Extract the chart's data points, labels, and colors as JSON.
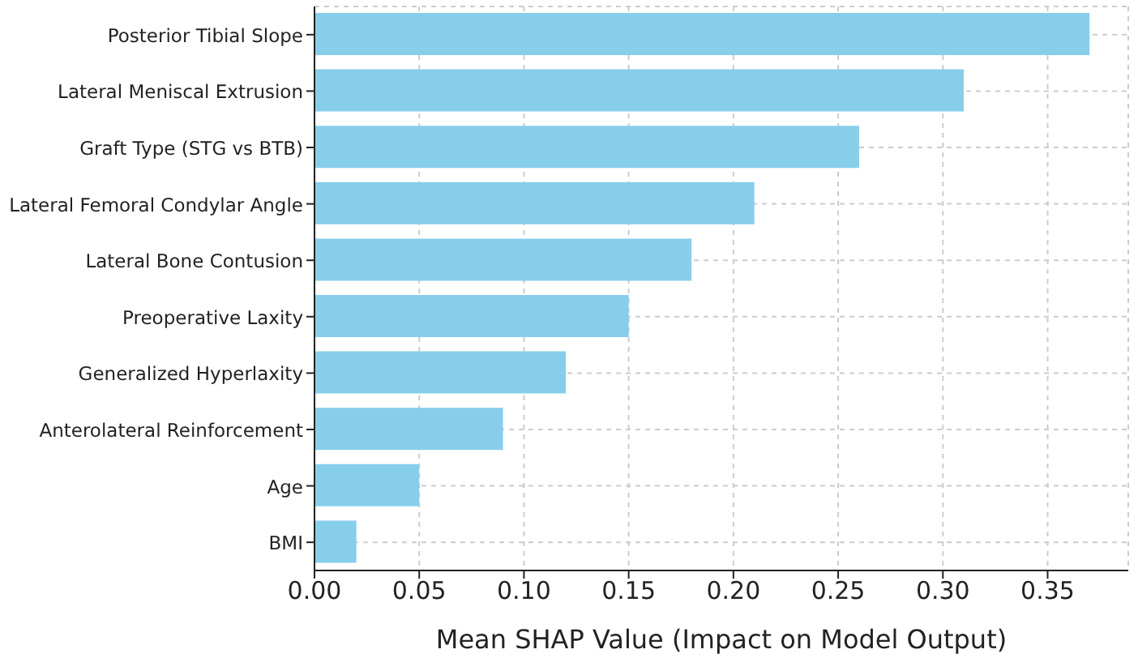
{
  "chart_data": {
    "type": "bar",
    "orientation": "horizontal",
    "xlabel": "Mean SHAP Value (Impact on Model Output)",
    "categories": [
      "Posterior Tibial Slope",
      "Lateral Meniscal Extrusion",
      "Graft Type (STG vs BTB)",
      "Lateral Femoral Condylar Angle",
      "Lateral Bone Contusion",
      "Preoperative Laxity",
      "Generalized Hyperlaxity",
      "Anterolateral Reinforcement",
      "Age",
      "BMI"
    ],
    "values": [
      0.37,
      0.31,
      0.26,
      0.21,
      0.18,
      0.15,
      0.12,
      0.09,
      0.05,
      0.02
    ],
    "color": "#87ceeb",
    "xlim": [
      0,
      0.3885
    ],
    "xticks": [
      {
        "value": 0,
        "label": "0.00"
      },
      0.05,
      {
        "value": 0.1,
        "label": "0.10"
      },
      0.15,
      {
        "value": 0.2,
        "label": "0.20"
      },
      0.25,
      {
        "value": 0.3,
        "label": "0.30"
      },
      0.35
    ],
    "grid": true
  }
}
